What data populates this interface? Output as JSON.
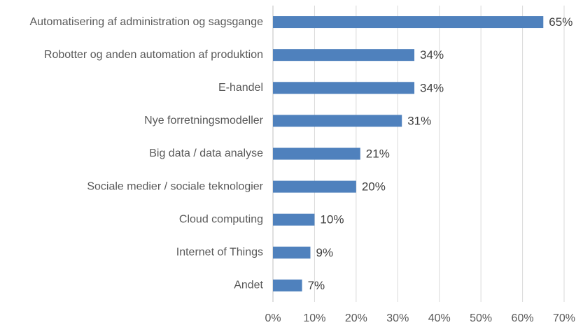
{
  "chart_data": {
    "type": "bar",
    "orientation": "horizontal",
    "categories": [
      "Automatisering af administration og sagsgange",
      "Robotter og anden automation af produktion",
      "E-handel",
      "Nye forretningsmodeller",
      "Big data / data analyse",
      "Sociale medier / sociale teknologier",
      "Cloud computing",
      "Internet of Things",
      "Andet"
    ],
    "values": [
      65,
      34,
      34,
      31,
      21,
      20,
      10,
      9,
      7
    ],
    "value_labels": [
      "65%",
      "34%",
      "34%",
      "31%",
      "21%",
      "20%",
      "10%",
      "9%",
      "7%"
    ],
    "color": "#4f81bd",
    "xlim": [
      0,
      70
    ],
    "xticks": [
      {
        "value": 0,
        "label": "0%"
      },
      {
        "value": 10,
        "label": "10%"
      },
      {
        "value": 20,
        "label": "20%"
      },
      {
        "value": 30,
        "label": "30%"
      },
      {
        "value": 40,
        "label": "40%"
      },
      {
        "value": 50,
        "label": "50%"
      },
      {
        "value": 60,
        "label": "60%"
      },
      {
        "value": 70,
        "label": "70%"
      }
    ],
    "grid": true
  }
}
